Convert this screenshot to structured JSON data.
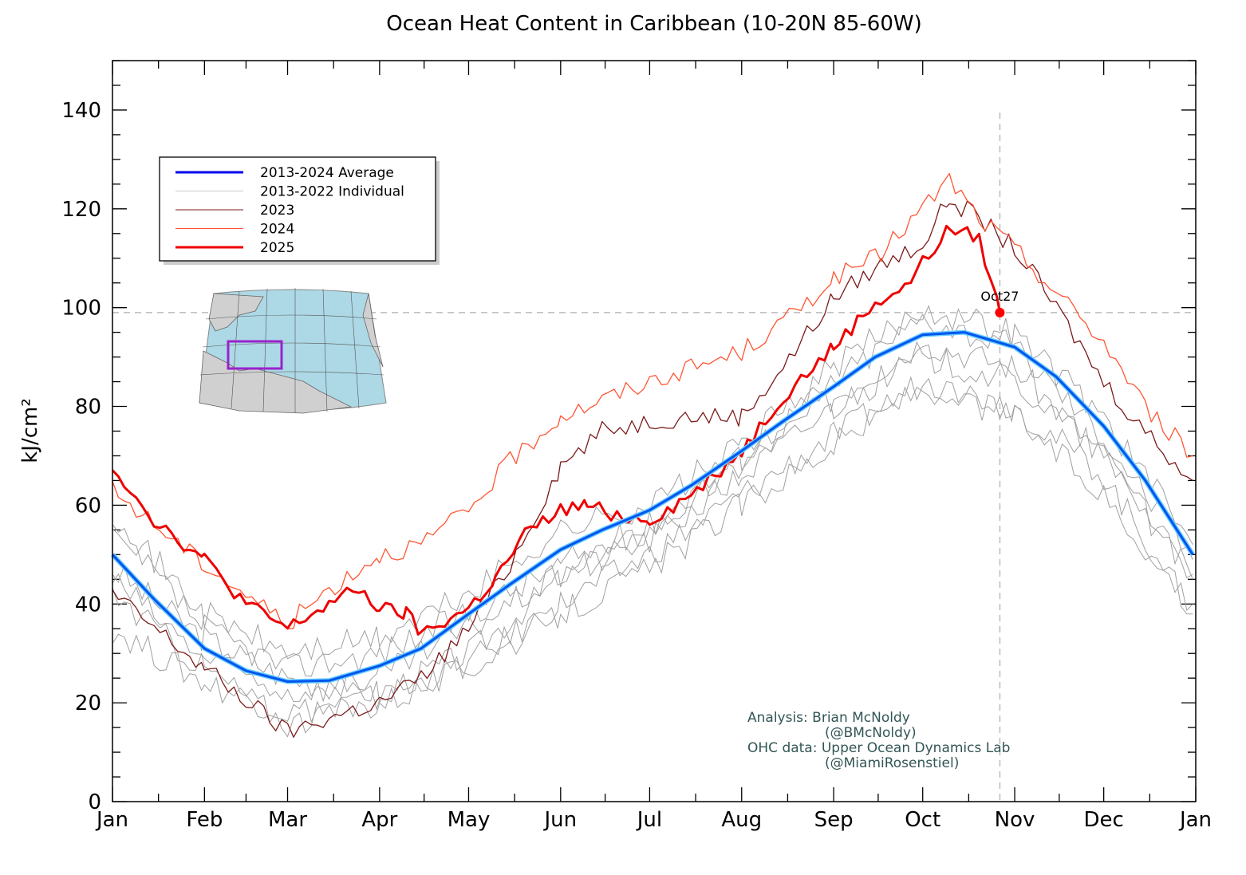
{
  "chart_data": {
    "type": "line",
    "title": "Ocean Heat Content in Caribbean (10-20N 85-60W)",
    "xlabel": "",
    "ylabel": "kJ/cm²",
    "ylim": [
      0,
      150
    ],
    "yticks": [
      0,
      20,
      40,
      60,
      80,
      100,
      120,
      140
    ],
    "xticks": [
      "Jan",
      "Feb",
      "Mar",
      "Apr",
      "May",
      "Jun",
      "Jul",
      "Aug",
      "Sep",
      "Oct",
      "Nov",
      "Dec",
      "Jan"
    ],
    "grid": false,
    "legend_position": "upper-left",
    "reference_line_y": 99,
    "marker": {
      "label": "Oct27",
      "date": "10-27",
      "value": 99,
      "color": "#ff0000"
    },
    "annotation": [
      "Analysis: Brian McNoldy",
      "(@BMcNoldy)",
      "OHC data: Upper Ocean Dynamics Lab",
      "(@MiamiRosenstiel)"
    ],
    "series": [
      {
        "name": "2013-2022 Individual",
        "color": "#a0a0a0",
        "lines": [
          {
            "x": [
              "01-01",
              "02-01",
              "03-01",
              "04-01",
              "05-01",
              "06-01",
              "07-01",
              "08-01",
              "09-01",
              "10-01",
              "11-01",
              "12-01",
              "12-31"
            ],
            "y": [
              47,
              33,
              25,
              22,
              30,
              45,
              55,
              68,
              82,
              93,
              88,
              70,
              45
            ]
          },
          {
            "x": [
              "01-01",
              "02-01",
              "03-01",
              "04-01",
              "05-01",
              "06-01",
              "07-01",
              "08-01",
              "09-01",
              "10-01",
              "11-01",
              "12-01",
              "12-31"
            ],
            "y": [
              35,
              24,
              18,
              21,
              28,
              40,
              50,
              62,
              74,
              85,
              80,
              66,
              38
            ]
          },
          {
            "x": [
              "01-01",
              "02-01",
              "03-01",
              "04-01",
              "05-01",
              "06-01",
              "07-01",
              "08-01",
              "09-01",
              "10-01",
              "11-01",
              "12-01",
              "12-31"
            ],
            "y": [
              55,
              35,
              27,
              30,
              38,
              48,
              56,
              70,
              85,
              98,
              92,
              74,
              49
            ]
          },
          {
            "x": [
              "01-01",
              "02-01",
              "03-01",
              "04-01",
              "05-01",
              "06-01",
              "07-01",
              "08-01",
              "09-01",
              "10-01",
              "11-01",
              "12-01",
              "12-31"
            ],
            "y": [
              45,
              29,
              22,
              25,
              35,
              46,
              53,
              66,
              80,
              90,
              85,
              70,
              46
            ]
          },
          {
            "x": [
              "01-01",
              "02-01",
              "03-01",
              "04-01",
              "05-01",
              "06-01",
              "07-01",
              "08-01",
              "09-01",
              "10-01",
              "11-01",
              "12-01",
              "12-31"
            ],
            "y": [
              58,
              38,
              30,
              33,
              42,
              55,
              60,
              72,
              88,
              100,
              95,
              78,
              52
            ]
          },
          {
            "x": [
              "01-01",
              "02-01",
              "03-01",
              "04-01",
              "05-01",
              "06-01",
              "07-01",
              "08-01",
              "09-01",
              "10-01",
              "11-01",
              "12-01",
              "12-31"
            ],
            "y": [
              42,
              27,
              16,
              20,
              27,
              38,
              47,
              60,
              72,
              84,
              78,
              62,
              40
            ]
          }
        ]
      },
      {
        "name": "2023",
        "color": "#7b1a1a",
        "x": [
          "01-01",
          "02-01",
          "03-01",
          "03-15",
          "04-01",
          "04-15",
          "05-01",
          "05-15",
          "06-01",
          "06-15",
          "07-01",
          "07-15",
          "08-01",
          "08-15",
          "09-01",
          "09-15",
          "10-01",
          "10-10",
          "10-20",
          "11-01",
          "11-15",
          "12-01",
          "12-15",
          "12-31"
        ],
        "y": [
          42,
          27,
          14,
          17,
          20,
          25,
          35,
          48,
          68,
          75,
          77,
          78,
          78,
          88,
          102,
          108,
          113,
          122,
          118,
          112,
          100,
          85,
          75,
          65
        ]
      },
      {
        "name": "2024",
        "color": "#ff5533",
        "x": [
          "01-01",
          "02-01",
          "03-01",
          "03-15",
          "04-01",
          "04-15",
          "05-01",
          "05-15",
          "06-01",
          "07-01",
          "08-01",
          "08-15",
          "09-01",
          "09-15",
          "10-01",
          "10-10",
          "10-20",
          "11-01",
          "11-15",
          "12-01",
          "12-15",
          "12-31"
        ],
        "y": [
          63,
          48,
          36,
          43,
          50,
          52,
          59,
          69,
          78,
          85,
          91,
          97,
          106,
          110,
          120,
          126,
          118,
          112,
          103,
          93,
          80,
          70
        ]
      },
      {
        "name": "2025",
        "color": "#ee0000",
        "x": [
          "01-01",
          "01-15",
          "02-01",
          "02-15",
          "03-01",
          "03-15",
          "03-25",
          "04-01",
          "04-10",
          "04-15",
          "05-01",
          "05-10",
          "05-20",
          "06-01",
          "06-10",
          "06-20",
          "07-01",
          "07-15",
          "08-01",
          "08-15",
          "09-01",
          "09-15",
          "09-25",
          "10-01",
          "10-10",
          "10-20",
          "10-27"
        ],
        "y": [
          68,
          57,
          49,
          40,
          35,
          40,
          43,
          39,
          38,
          34,
          39,
          45,
          54,
          59,
          60,
          58,
          57,
          62,
          71,
          82,
          92,
          101,
          104,
          109,
          116,
          114,
          99
        ]
      },
      {
        "name": "2013-2024 Average",
        "color": "#0055ee",
        "x": [
          "01-01",
          "01-15",
          "02-01",
          "02-15",
          "03-01",
          "03-15",
          "04-01",
          "04-15",
          "05-01",
          "05-15",
          "06-01",
          "06-15",
          "07-01",
          "07-15",
          "08-01",
          "08-15",
          "09-01",
          "09-15",
          "10-01",
          "10-15",
          "11-01",
          "11-15",
          "12-01",
          "12-15",
          "12-31"
        ],
        "y": [
          50,
          41,
          31,
          26.5,
          24.3,
          24.5,
          27.5,
          31,
          38,
          44,
          51,
          55,
          59,
          64,
          71,
          77,
          84,
          90,
          94.5,
          95,
          92,
          86,
          76,
          65,
          50
        ]
      }
    ]
  },
  "legend": [
    {
      "label": "2013-2024 Average",
      "color": "#0000ee"
    },
    {
      "label": "2013-2022 Individual",
      "color": "#c8c8c8"
    },
    {
      "label": "2023",
      "color": "#7b1a1a"
    },
    {
      "label": "2024",
      "color": "#ff5533"
    },
    {
      "label": "2025",
      "color": "#ee0000"
    }
  ]
}
